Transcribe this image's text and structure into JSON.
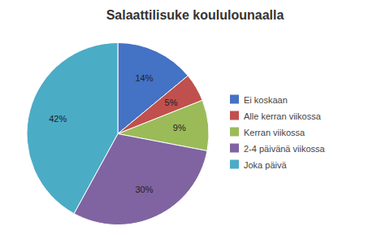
{
  "chart_data": {
    "type": "pie",
    "title": "Salaattilisuke koululounaalla",
    "categories": [
      "Ei koskaan",
      "Alle kerran viikossa",
      "Kerran viikossa",
      "2-4 päivänä viikossa",
      "Joka päivä"
    ],
    "values": [
      14,
      5,
      9,
      30,
      42
    ],
    "value_labels": [
      "14%",
      "5%",
      "9%",
      "30%",
      "42%"
    ],
    "colors": [
      "#4472C4",
      "#C0504D",
      "#9BBB59",
      "#8064A2",
      "#4BACC6"
    ],
    "data_labels": true,
    "legend": "right"
  }
}
